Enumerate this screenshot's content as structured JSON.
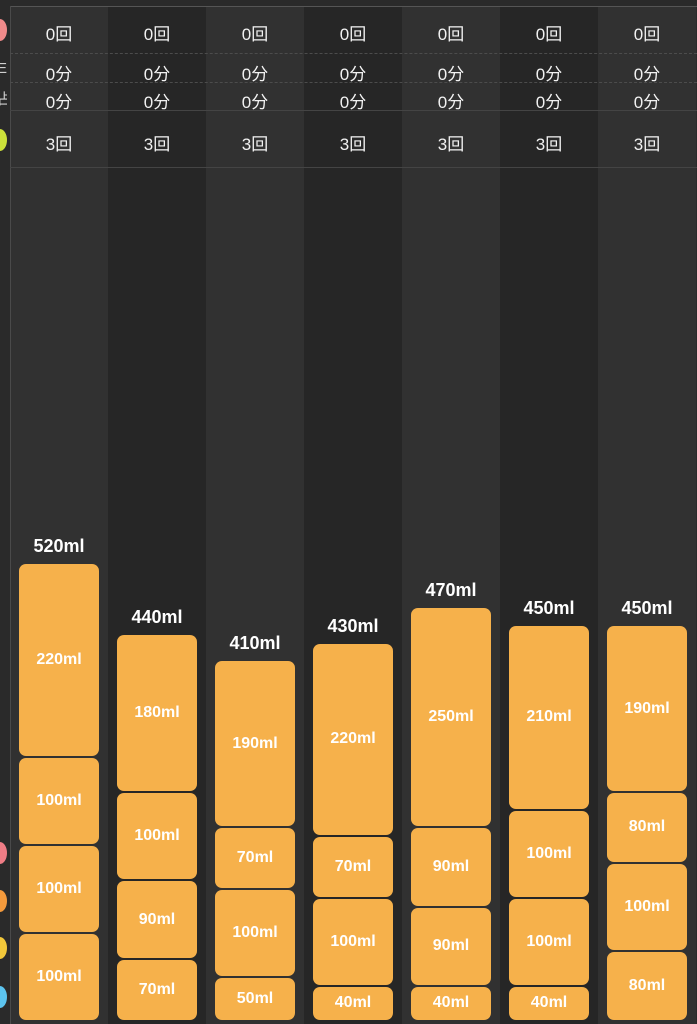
{
  "stats": {
    "row1": [
      "0回",
      "0回",
      "0回",
      "0回",
      "0回",
      "0回",
      "0回"
    ],
    "row2": [
      "0分",
      "0分",
      "0分",
      "0分",
      "0分",
      "0分",
      "0分"
    ],
    "row3": [
      "0分",
      "0分",
      "0分",
      "0分",
      "0分",
      "0分",
      "0分"
    ],
    "row4": [
      "3回",
      "3回",
      "3回",
      "3回",
      "3回",
      "3回",
      "3回"
    ]
  },
  "legend_fragments": [
    "E",
    "占"
  ],
  "colors": {
    "bar": "#f6b14b",
    "legend_dots": [
      "#f08a8a",
      "#cde23a",
      "#ef7d86",
      "#f49a3c",
      "#f2c83a",
      "#5cc4ef"
    ]
  },
  "bars": [
    {
      "total": "520ml",
      "segments": [
        "220ml",
        "100ml",
        "100ml",
        "100ml"
      ]
    },
    {
      "total": "440ml",
      "segments": [
        "180ml",
        "100ml",
        "90ml",
        "70ml"
      ]
    },
    {
      "total": "410ml",
      "segments": [
        "190ml",
        "70ml",
        "100ml",
        "50ml"
      ]
    },
    {
      "total": "430ml",
      "segments": [
        "220ml",
        "70ml",
        "100ml",
        "40ml"
      ]
    },
    {
      "total": "470ml",
      "segments": [
        "250ml",
        "90ml",
        "90ml",
        "40ml"
      ]
    },
    {
      "total": "450ml",
      "segments": [
        "210ml",
        "100ml",
        "100ml",
        "40ml"
      ]
    },
    {
      "total": "450ml",
      "segments": [
        "190ml",
        "80ml",
        "100ml",
        "80ml"
      ]
    }
  ]
}
